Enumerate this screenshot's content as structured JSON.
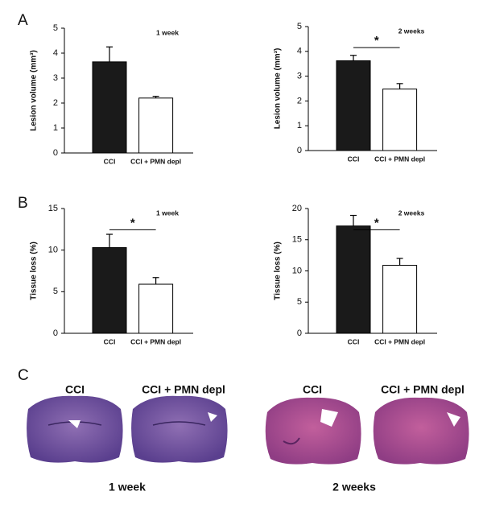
{
  "panels": {
    "a": "A",
    "b": "B",
    "c": "C"
  },
  "chart_data": [
    {
      "type": "bar",
      "ylabel": "Lesion volume (mm³)",
      "annotation": "1 week",
      "categories": [
        "CCI",
        "CCI + PMN depl"
      ],
      "values": [
        3.65,
        2.2
      ],
      "errors": [
        0.6,
        0.07
      ],
      "colors": [
        "#1a1a1a",
        "#ffffff"
      ],
      "ylim": [
        0,
        5
      ],
      "yticks": [
        0,
        1,
        2,
        3,
        4,
        5
      ]
    },
    {
      "type": "bar",
      "ylabel": "Lesion volume (mm³)",
      "annotation": "2 weeks",
      "significance": "*",
      "categories": [
        "CCI",
        "CCI + PMN depl"
      ],
      "values": [
        3.62,
        2.48
      ],
      "errors": [
        0.22,
        0.22
      ],
      "colors": [
        "#1a1a1a",
        "#ffffff"
      ],
      "ylim": [
        0,
        5
      ],
      "yticks": [
        0,
        1,
        2,
        3,
        4,
        5
      ]
    },
    {
      "type": "bar",
      "ylabel": "Tissue loss (%)",
      "annotation": "1 week",
      "significance": "*",
      "categories": [
        "CCI",
        "CCI + PMN depl"
      ],
      "values": [
        10.3,
        5.9
      ],
      "errors": [
        1.6,
        0.8
      ],
      "colors": [
        "#1a1a1a",
        "#ffffff"
      ],
      "ylim": [
        0,
        15
      ],
      "yticks": [
        0,
        5,
        10,
        15
      ]
    },
    {
      "type": "bar",
      "ylabel": "Tissue loss (%)",
      "annotation": "2 weeks",
      "significance": "*",
      "categories": [
        "CCI",
        "CCI + PMN depl"
      ],
      "values": [
        17.2,
        10.9
      ],
      "errors": [
        1.7,
        1.1
      ],
      "colors": [
        "#1a1a1a",
        "#ffffff"
      ],
      "ylim": [
        0,
        20
      ],
      "yticks": [
        0,
        5,
        10,
        15,
        20
      ]
    }
  ],
  "images": {
    "labels": [
      "CCI",
      "CCI + PMN depl",
      "CCI",
      "CCI + PMN depl"
    ],
    "captions": [
      "1 week",
      "2 weeks"
    ]
  }
}
